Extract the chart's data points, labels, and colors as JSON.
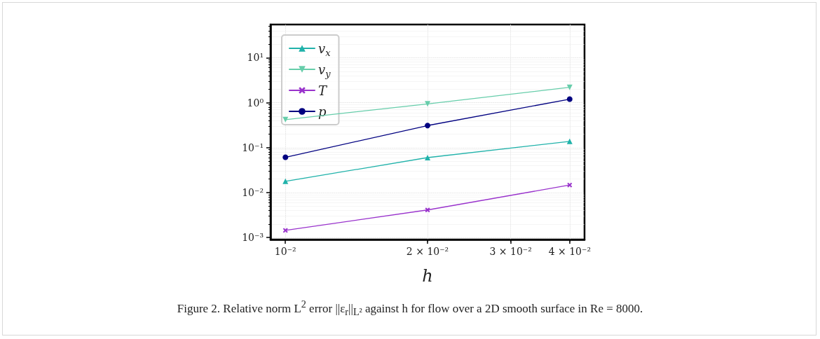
{
  "chart_data": {
    "type": "line",
    "xlabel": "h",
    "log": "xy",
    "grid": true,
    "legend": "top left",
    "x": [
      0.01,
      0.02,
      0.04
    ],
    "xlim": [
      0.0093,
      0.043
    ],
    "xticks": [
      {
        "value": 0.01,
        "label": "10⁻²"
      },
      {
        "value": 0.02,
        "label": "2 × 10⁻²"
      },
      {
        "value": 0.03,
        "label": "3 × 10⁻²"
      },
      {
        "value": 0.04,
        "label": "4 × 10⁻²"
      }
    ],
    "ylim": [
      0.0009,
      55
    ],
    "yticks": [
      {
        "value": 0.001,
        "label": "10⁻³"
      },
      {
        "value": 0.01,
        "label": "10⁻²"
      },
      {
        "value": 0.1,
        "label": "10⁻¹"
      },
      {
        "value": 1,
        "label": "10⁰"
      },
      {
        "value": 10,
        "label": "10¹"
      }
    ],
    "series": [
      {
        "name": "v$_{x}$",
        "color": "#20b2aa",
        "marker": "triangle",
        "values": [
          0.0178,
          0.06,
          0.138
        ]
      },
      {
        "name": "v$_{y}$",
        "color": "#66cdaa",
        "marker": "triangle-down",
        "values": [
          0.42,
          0.94,
          2.2
        ]
      },
      {
        "name": "T",
        "color": "#9932cc",
        "marker": "cross",
        "values": [
          0.00144,
          0.0041,
          0.0147
        ]
      },
      {
        "name": "p",
        "color": "#000080",
        "marker": "circle",
        "values": [
          0.061,
          0.31,
          1.2
        ]
      }
    ],
    "annotations": [
      "Figure 2. Relative norm L$^{2}$ error ||ε$_{r}$||$_{L²}$ against h for flow over a 2D smooth surface in Re = 8000."
    ]
  }
}
